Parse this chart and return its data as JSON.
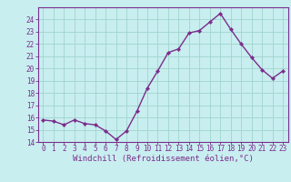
{
  "x": [
    0,
    1,
    2,
    3,
    4,
    5,
    6,
    7,
    8,
    9,
    10,
    11,
    12,
    13,
    14,
    15,
    16,
    17,
    18,
    19,
    20,
    21,
    22,
    23
  ],
  "y": [
    15.8,
    15.7,
    15.4,
    15.8,
    15.5,
    15.4,
    14.9,
    14.2,
    14.9,
    16.5,
    18.4,
    19.8,
    21.3,
    21.6,
    22.9,
    23.1,
    23.8,
    24.5,
    23.2,
    22.0,
    20.9,
    19.9,
    19.2,
    19.8
  ],
  "line_color": "#7b2d8b",
  "marker": "D",
  "marker_size": 2.2,
  "bg_color": "#c8eef0",
  "grid_color": "#a0d4cc",
  "xlabel": "Windchill (Refroidissement éolien,°C)",
  "xlim": [
    -0.5,
    23.5
  ],
  "ylim": [
    14,
    25
  ],
  "yticks": [
    14,
    15,
    16,
    17,
    18,
    19,
    20,
    21,
    22,
    23,
    24
  ],
  "xticks": [
    0,
    1,
    2,
    3,
    4,
    5,
    6,
    7,
    8,
    9,
    10,
    11,
    12,
    13,
    14,
    15,
    16,
    17,
    18,
    19,
    20,
    21,
    22,
    23
  ],
  "xtick_labels": [
    "0",
    "1",
    "2",
    "3",
    "4",
    "5",
    "6",
    "7",
    "8",
    "9",
    "10",
    "11",
    "12",
    "13",
    "14",
    "15",
    "16",
    "17",
    "18",
    "19",
    "20",
    "21",
    "22",
    "23"
  ],
  "ytick_labels": [
    "14",
    "15",
    "16",
    "17",
    "18",
    "19",
    "20",
    "21",
    "22",
    "23",
    "24"
  ],
  "tick_fontsize": 5.5,
  "label_fontsize": 6.5,
  "linewidth": 1.0
}
